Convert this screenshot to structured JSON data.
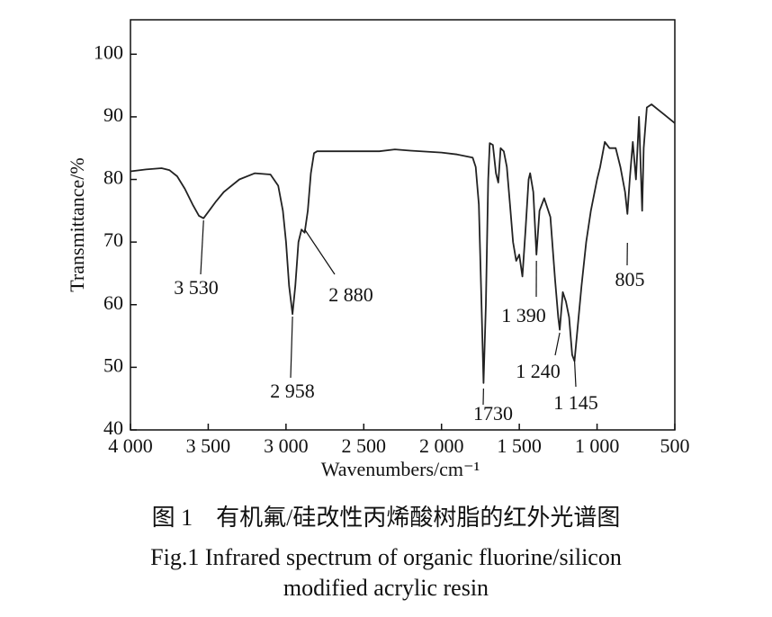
{
  "chart_data": {
    "type": "line",
    "xlabel": "Wavenumbers/cm⁻¹",
    "ylabel": "Transmittance/%",
    "color": "#222222",
    "xlim": [
      4000,
      500
    ],
    "ylim": [
      40,
      105.5
    ],
    "xticks": [
      {
        "value": 4000,
        "label": "4 000"
      },
      {
        "value": 3500,
        "label": "3 500"
      },
      {
        "value": 3000,
        "label": "3 000"
      },
      {
        "value": 2500,
        "label": "2 500"
      },
      {
        "value": 2000,
        "label": "2 000"
      },
      {
        "value": 1500,
        "label": "1 500"
      },
      {
        "value": 1000,
        "label": "1 000"
      },
      500
    ],
    "yticks": [
      40,
      50,
      60,
      70,
      80,
      90,
      100
    ],
    "x": [
      4000,
      3900,
      3800,
      3750,
      3700,
      3650,
      3600,
      3560,
      3530,
      3500,
      3450,
      3400,
      3300,
      3200,
      3100,
      3050,
      3020,
      3000,
      2980,
      2958,
      2940,
      2920,
      2900,
      2880,
      2860,
      2840,
      2820,
      2800,
      2600,
      2400,
      2300,
      2200,
      2000,
      1900,
      1800,
      1780,
      1760,
      1745,
      1730,
      1715,
      1700,
      1690,
      1670,
      1650,
      1635,
      1620,
      1600,
      1580,
      1560,
      1540,
      1520,
      1500,
      1480,
      1460,
      1440,
      1430,
      1410,
      1390,
      1370,
      1340,
      1300,
      1270,
      1250,
      1240,
      1220,
      1200,
      1180,
      1160,
      1145,
      1130,
      1100,
      1070,
      1040,
      1000,
      980,
      950,
      920,
      880,
      850,
      820,
      805,
      790,
      770,
      750,
      730,
      710,
      700,
      680,
      650,
      600,
      550,
      500
    ],
    "values": [
      81.3,
      81.6,
      81.8,
      81.5,
      80.5,
      78.5,
      76,
      74.2,
      73.8,
      74.8,
      76.5,
      78,
      80,
      81,
      80.8,
      79,
      75,
      70,
      63,
      58.5,
      63,
      70,
      72,
      71.5,
      75,
      81,
      84.2,
      84.5,
      84.5,
      84.5,
      84.8,
      84.6,
      84.3,
      84,
      83.5,
      82,
      76,
      62,
      47.5,
      60,
      80,
      85.8,
      85.5,
      81,
      79.5,
      85,
      84.5,
      82,
      76,
      70,
      67,
      68,
      64.5,
      72,
      80,
      81,
      78,
      68,
      75,
      77,
      74,
      64,
      58,
      56,
      62,
      60.5,
      58,
      52,
      51,
      55,
      63,
      70,
      75,
      80,
      82,
      86,
      85,
      85,
      82,
      78,
      74.5,
      80,
      86,
      80,
      90,
      75,
      85,
      91.5,
      92,
      91,
      90,
      89
    ],
    "annotations": [
      {
        "value": 3530,
        "label": "3 530"
      },
      {
        "value": 2958,
        "label": "2 958"
      },
      {
        "value": 2880,
        "label": "2 880"
      },
      {
        "value": 1730,
        "label": "1730"
      },
      {
        "value": 1390,
        "label": "1 390"
      },
      {
        "value": 1240,
        "label": "1 240"
      },
      {
        "value": 1145,
        "label": "1 145"
      },
      {
        "value": 805,
        "label": "805"
      }
    ]
  },
  "caption_cn": "图 1　有机氟/硅改性丙烯酸树脂的红外光谱图",
  "caption_en": [
    "Fig.1 Infrared spectrum of organic fluorine/silicon",
    "modified acrylic resin"
  ]
}
